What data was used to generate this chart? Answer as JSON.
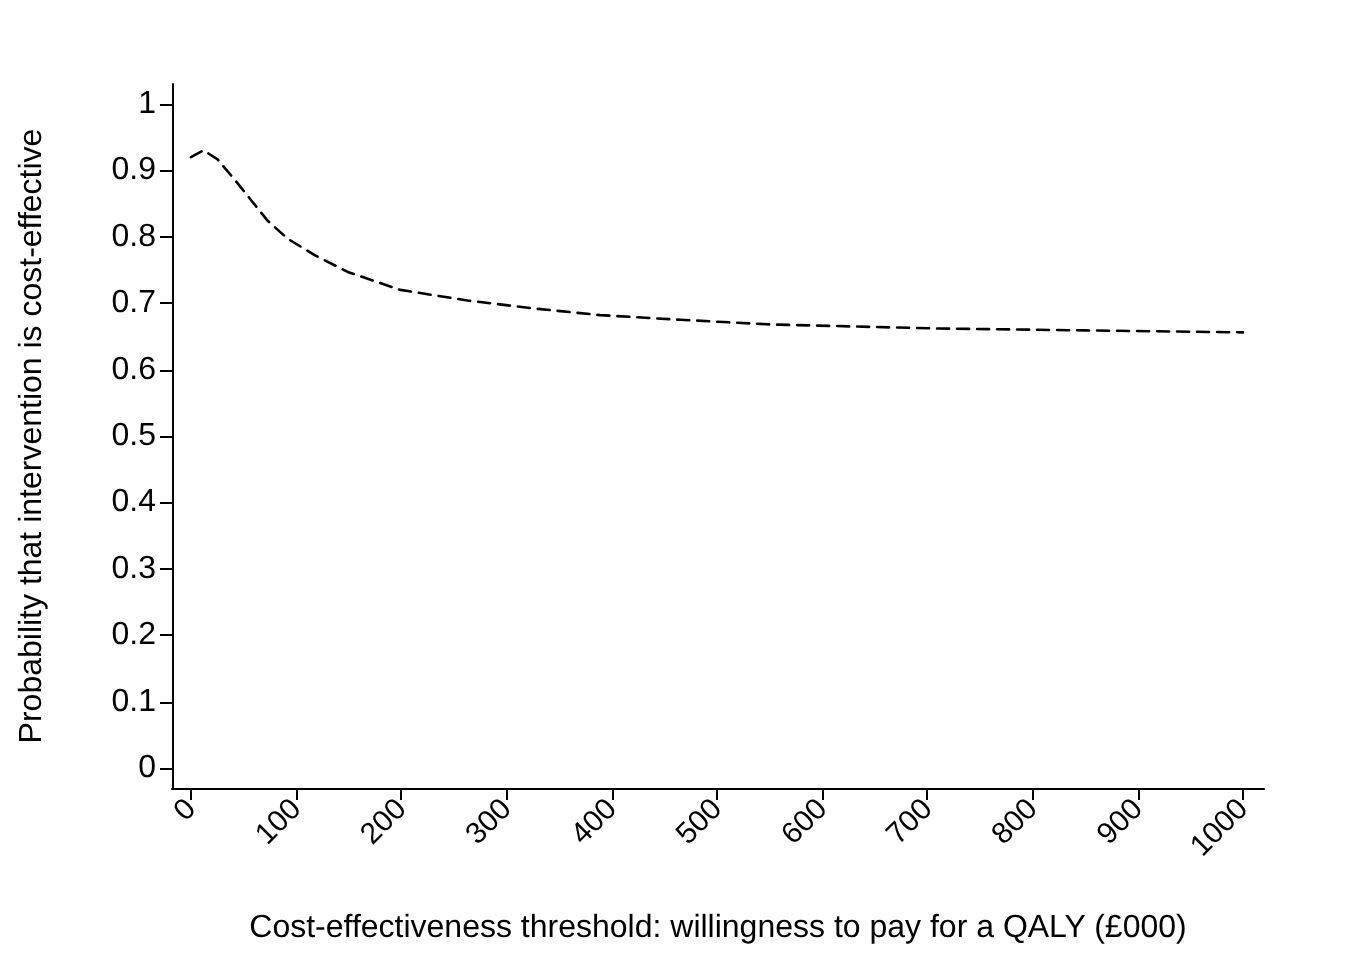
{
  "chart_data": {
    "type": "line",
    "xlabel": "Cost-effectiveness threshold: willingness to pay for a QALY (£000)",
    "ylabel": "Probability that intervention is cost-effective",
    "x": [
      0,
      12,
      25,
      41,
      73,
      92,
      118,
      149,
      199,
      263,
      326,
      389,
      465,
      550,
      706,
      850,
      1000
    ],
    "series": [
      {
        "color": "#000000",
        "values": [
          0.92,
          0.93,
          0.917,
          0.887,
          0.824,
          0.797,
          0.772,
          0.747,
          0.72,
          0.704,
          0.692,
          0.682,
          0.675,
          0.668,
          0.662,
          0.659,
          0.656
        ]
      }
    ],
    "xlim": [
      -18,
      1020
    ],
    "xticks": [
      0,
      100,
      200,
      300,
      400,
      500,
      600,
      700,
      800,
      900,
      1000
    ],
    "ylim": [
      -0.03,
      1.03
    ],
    "yticks": [
      0,
      0.1,
      0.2,
      0.3,
      0.4,
      0.5,
      0.6,
      0.7,
      0.8,
      0.9,
      1
    ],
    "grid": false,
    "marker": "none",
    "line_style": "dashed"
  }
}
